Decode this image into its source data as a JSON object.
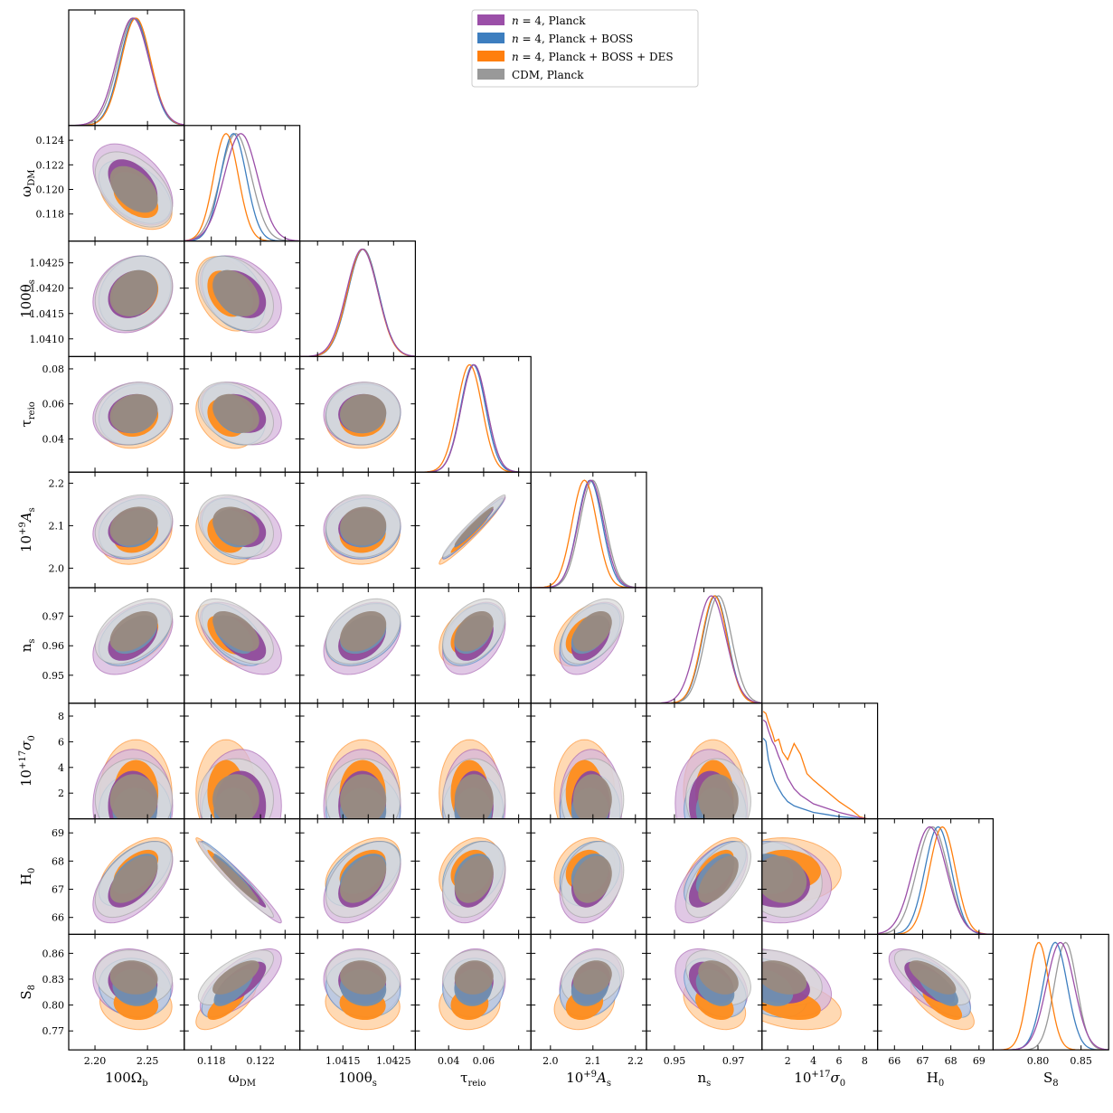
{
  "chart_data": {
    "type": "triangle-plot",
    "parameters": [
      {
        "key": "omega_b",
        "label": "100Ω_b",
        "label_main": "100Ω",
        "label_sub": "b",
        "label_sup": "",
        "range": [
          2.175,
          2.285
        ],
        "ticks": [
          2.2,
          2.25
        ],
        "tick_labels": [
          "2.20",
          "2.25"
        ]
      },
      {
        "key": "omega_dm",
        "label": "ω_DM",
        "label_main": "ω",
        "label_sub": "DM",
        "label_sup": "",
        "range": [
          0.1158,
          0.1252
        ],
        "ticks": [
          0.118,
          0.12,
          0.122,
          0.124
        ],
        "tick_labels": [
          "0.118",
          "0.120",
          "0.122",
          "0.124"
        ],
        "x_tick_labels_shown": [
          "0.118",
          "0.122"
        ]
      },
      {
        "key": "theta_s",
        "label": "100θ_s",
        "label_main": "100θ",
        "label_sub": "s",
        "label_sup": "",
        "range": [
          1.04065,
          1.04293
        ],
        "ticks": [
          1.041,
          1.0415,
          1.042,
          1.0425
        ],
        "tick_labels": [
          "1.0410",
          "1.0415",
          "1.0420",
          "1.0425"
        ],
        "x_tick_labels_shown": [
          "1.0415",
          "1.0425"
        ]
      },
      {
        "key": "tau_reio",
        "label": "τ_reio",
        "label_main": "τ",
        "label_sub": "reio",
        "label_sup": "",
        "range": [
          0.021,
          0.087
        ],
        "ticks": [
          0.04,
          0.06,
          0.08
        ],
        "tick_labels": [
          "0.04",
          "0.06",
          "0.08"
        ],
        "x_tick_labels_shown": [
          "0.04",
          "0.06"
        ]
      },
      {
        "key": "As",
        "label": "10^+9 A_s",
        "label_main": "10",
        "label_sub": "s",
        "label_sup": "+9",
        "label_main2": "A",
        "range": [
          1.954,
          2.226
        ],
        "ticks": [
          2.0,
          2.1,
          2.2
        ],
        "tick_labels": [
          "2.0",
          "2.1",
          "2.2"
        ]
      },
      {
        "key": "ns",
        "label": "n_s",
        "label_main": "n",
        "label_sub": "s",
        "label_sup": "",
        "range": [
          0.9405,
          0.9797
        ],
        "ticks": [
          0.95,
          0.96,
          0.97
        ],
        "tick_labels": [
          "0.95",
          "0.96",
          "0.97"
        ],
        "x_tick_labels_shown": [
          "0.95",
          "0.97"
        ]
      },
      {
        "key": "sigma0",
        "label": "10^+17 σ_0",
        "label_main": "10",
        "label_sub": "0",
        "label_sup": "+17",
        "label_main2": "σ",
        "range": [
          0,
          9.0
        ],
        "ticks": [
          2,
          4,
          6,
          8
        ],
        "tick_labels": [
          "2",
          "4",
          "6",
          "8"
        ]
      },
      {
        "key": "H0",
        "label": "H_0",
        "label_main": "H",
        "label_sub": "0",
        "label_sup": "",
        "range": [
          65.4,
          69.5
        ],
        "ticks": [
          66,
          67,
          68,
          69
        ],
        "tick_labels": [
          "66",
          "67",
          "68",
          "69"
        ]
      },
      {
        "key": "S8",
        "label": "S_8",
        "label_main": "S",
        "label_sub": "8",
        "label_sup": "",
        "range": [
          0.748,
          0.882
        ],
        "ticks": [
          0.77,
          0.8,
          0.83,
          0.86
        ],
        "tick_labels": [
          "0.77",
          "0.80",
          "0.83",
          "0.86"
        ],
        "x_ticks": [
          0.8,
          0.85
        ],
        "x_tick_labels_shown": [
          "0.80",
          "0.85"
        ]
      }
    ],
    "series": [
      {
        "name": "n = 4, Planck",
        "legend_main": "n",
        "legend_rest": " = 4, Planck",
        "color": "#9b4fa8",
        "fill_outer": "#d6b6dc",
        "fill_inner": "#8f4a9a",
        "means": {
          "omega_b": 2.236,
          "omega_dm": 0.1204,
          "theta_s": 1.04188,
          "tau_reio": 0.0545,
          "As": 2.095,
          "ns": 0.9625,
          "sigma0": 1.0,
          "H0": 67.25,
          "S8": 0.826
        },
        "sigmas": {
          "omega_b": 0.0155,
          "omega_dm": 0.00135,
          "theta_s": 0.00031,
          "tau_reio": 0.0073,
          "As": 0.03,
          "ns": 0.005,
          "sigma0": 1.8,
          "H0": 0.59,
          "S8": 0.016
        }
      },
      {
        "name": "n = 4, Planck + BOSS",
        "legend_main": "n",
        "legend_rest": " = 4, Planck + BOSS",
        "color": "#3d7ebf",
        "fill_outer": "#b3cde6",
        "fill_inner": "#6f8fb0",
        "means": {
          "omega_b": 2.238,
          "omega_dm": 0.1198,
          "theta_s": 1.0419,
          "tau_reio": 0.054,
          "As": 2.093,
          "ns": 0.9638,
          "sigma0": 0.6,
          "H0": 67.55,
          "S8": 0.82
        },
        "sigmas": {
          "omega_b": 0.014,
          "omega_dm": 0.00105,
          "theta_s": 0.0003,
          "tau_reio": 0.0071,
          "As": 0.029,
          "ns": 0.0043,
          "sigma0": 1.2,
          "H0": 0.47,
          "S8": 0.014
        }
      },
      {
        "name": "n = 4, Planck + BOSS + DES",
        "legend_main": "n",
        "legend_rest": " = 4, Planck + BOSS + DES",
        "color": "#ff7f0e",
        "fill_outer": "#ffcc99",
        "fill_inner": "#ff8c1a",
        "means": {
          "omega_b": 2.239,
          "omega_dm": 0.1192,
          "theta_s": 1.04189,
          "tau_reio": 0.052,
          "As": 2.08,
          "ns": 0.9636,
          "sigma0": 2.0,
          "H0": 67.7,
          "S8": 0.801
        },
        "sigmas": {
          "omega_b": 0.014,
          "omega_dm": 0.001,
          "theta_s": 0.0003,
          "tau_reio": 0.0071,
          "As": 0.029,
          "ns": 0.0043,
          "sigma0": 1.7,
          "H0": 0.46,
          "S8": 0.012
        }
      },
      {
        "name": "CDM, Planck",
        "legend_main": "",
        "legend_rest": "CDM, Planck",
        "color": "#999999",
        "fill_outer": "#d9d9d9",
        "fill_inner": "#998a7f",
        "means": {
          "omega_b": 2.237,
          "omega_dm": 0.12,
          "theta_s": 1.0419,
          "tau_reio": 0.0545,
          "As": 2.099,
          "ns": 0.9649,
          "sigma0": 1.5,
          "H0": 67.35,
          "S8": 0.832
        },
        "sigmas": {
          "omega_b": 0.015,
          "omega_dm": 0.00125,
          "theta_s": 0.0003,
          "tau_reio": 0.0073,
          "As": 0.03,
          "ns": 0.0045,
          "sigma0": 1.3,
          "H0": 0.55,
          "S8": 0.013
        }
      }
    ],
    "correlations": {
      "omega_dm|omega_b": -0.45,
      "theta_s|omega_b": 0.2,
      "theta_s|omega_dm": -0.35,
      "tau_reio|omega_b": 0.15,
      "tau_reio|omega_dm": -0.3,
      "tau_reio|theta_s": 0.05,
      "As|omega_b": 0.2,
      "As|omega_dm": -0.25,
      "As|theta_s": 0.05,
      "As|tau_reio": 0.97,
      "ns|omega_b": 0.45,
      "ns|omega_dm": -0.55,
      "ns|theta_s": 0.35,
      "ns|tau_reio": 0.4,
      "ns|As": 0.45,
      "sigma0|omega_b": 0.0,
      "sigma0|omega_dm": 0.0,
      "sigma0|theta_s": 0.0,
      "sigma0|tau_reio": 0.0,
      "sigma0|As": 0.0,
      "sigma0|ns": -0.05,
      "H0|omega_b": 0.55,
      "H0|omega_dm": -0.97,
      "H0|theta_s": 0.45,
      "H0|tau_reio": 0.3,
      "H0|As": 0.25,
      "H0|ns": 0.6,
      "H0|sigma0": -0.1,
      "S8|omega_b": -0.1,
      "S8|omega_dm": 0.7,
      "S8|theta_s": -0.1,
      "S8|tau_reio": 0.05,
      "S8|As": 0.2,
      "S8|ns": -0.35,
      "S8|sigma0": -0.35,
      "S8|H0": -0.7
    },
    "sigma0_pdf": {
      "x": [
        0.1,
        0.3,
        0.5,
        0.8,
        1.0,
        1.3,
        1.6,
        2.0,
        2.5,
        3.0,
        3.5,
        4.0,
        5.0,
        6.0,
        7.0,
        7.6,
        8.2
      ],
      "n = 4, Planck": [
        0.92,
        0.9,
        0.82,
        0.72,
        0.68,
        0.58,
        0.5,
        0.38,
        0.28,
        0.22,
        0.18,
        0.14,
        0.1,
        0.06,
        0.03,
        0.01,
        0.0
      ],
      "n = 4, Planck + BOSS": [
        0.75,
        0.72,
        0.55,
        0.42,
        0.35,
        0.28,
        0.22,
        0.16,
        0.12,
        0.1,
        0.08,
        0.06,
        0.04,
        0.02,
        0.01,
        0.0,
        0.0
      ],
      "n = 4, Planck + BOSS + DES": [
        1.0,
        0.98,
        0.9,
        0.8,
        0.72,
        0.74,
        0.62,
        0.55,
        0.7,
        0.6,
        0.42,
        0.36,
        0.26,
        0.16,
        0.08,
        0.02,
        0.0
      ]
    },
    "legend_position": "top-center"
  }
}
